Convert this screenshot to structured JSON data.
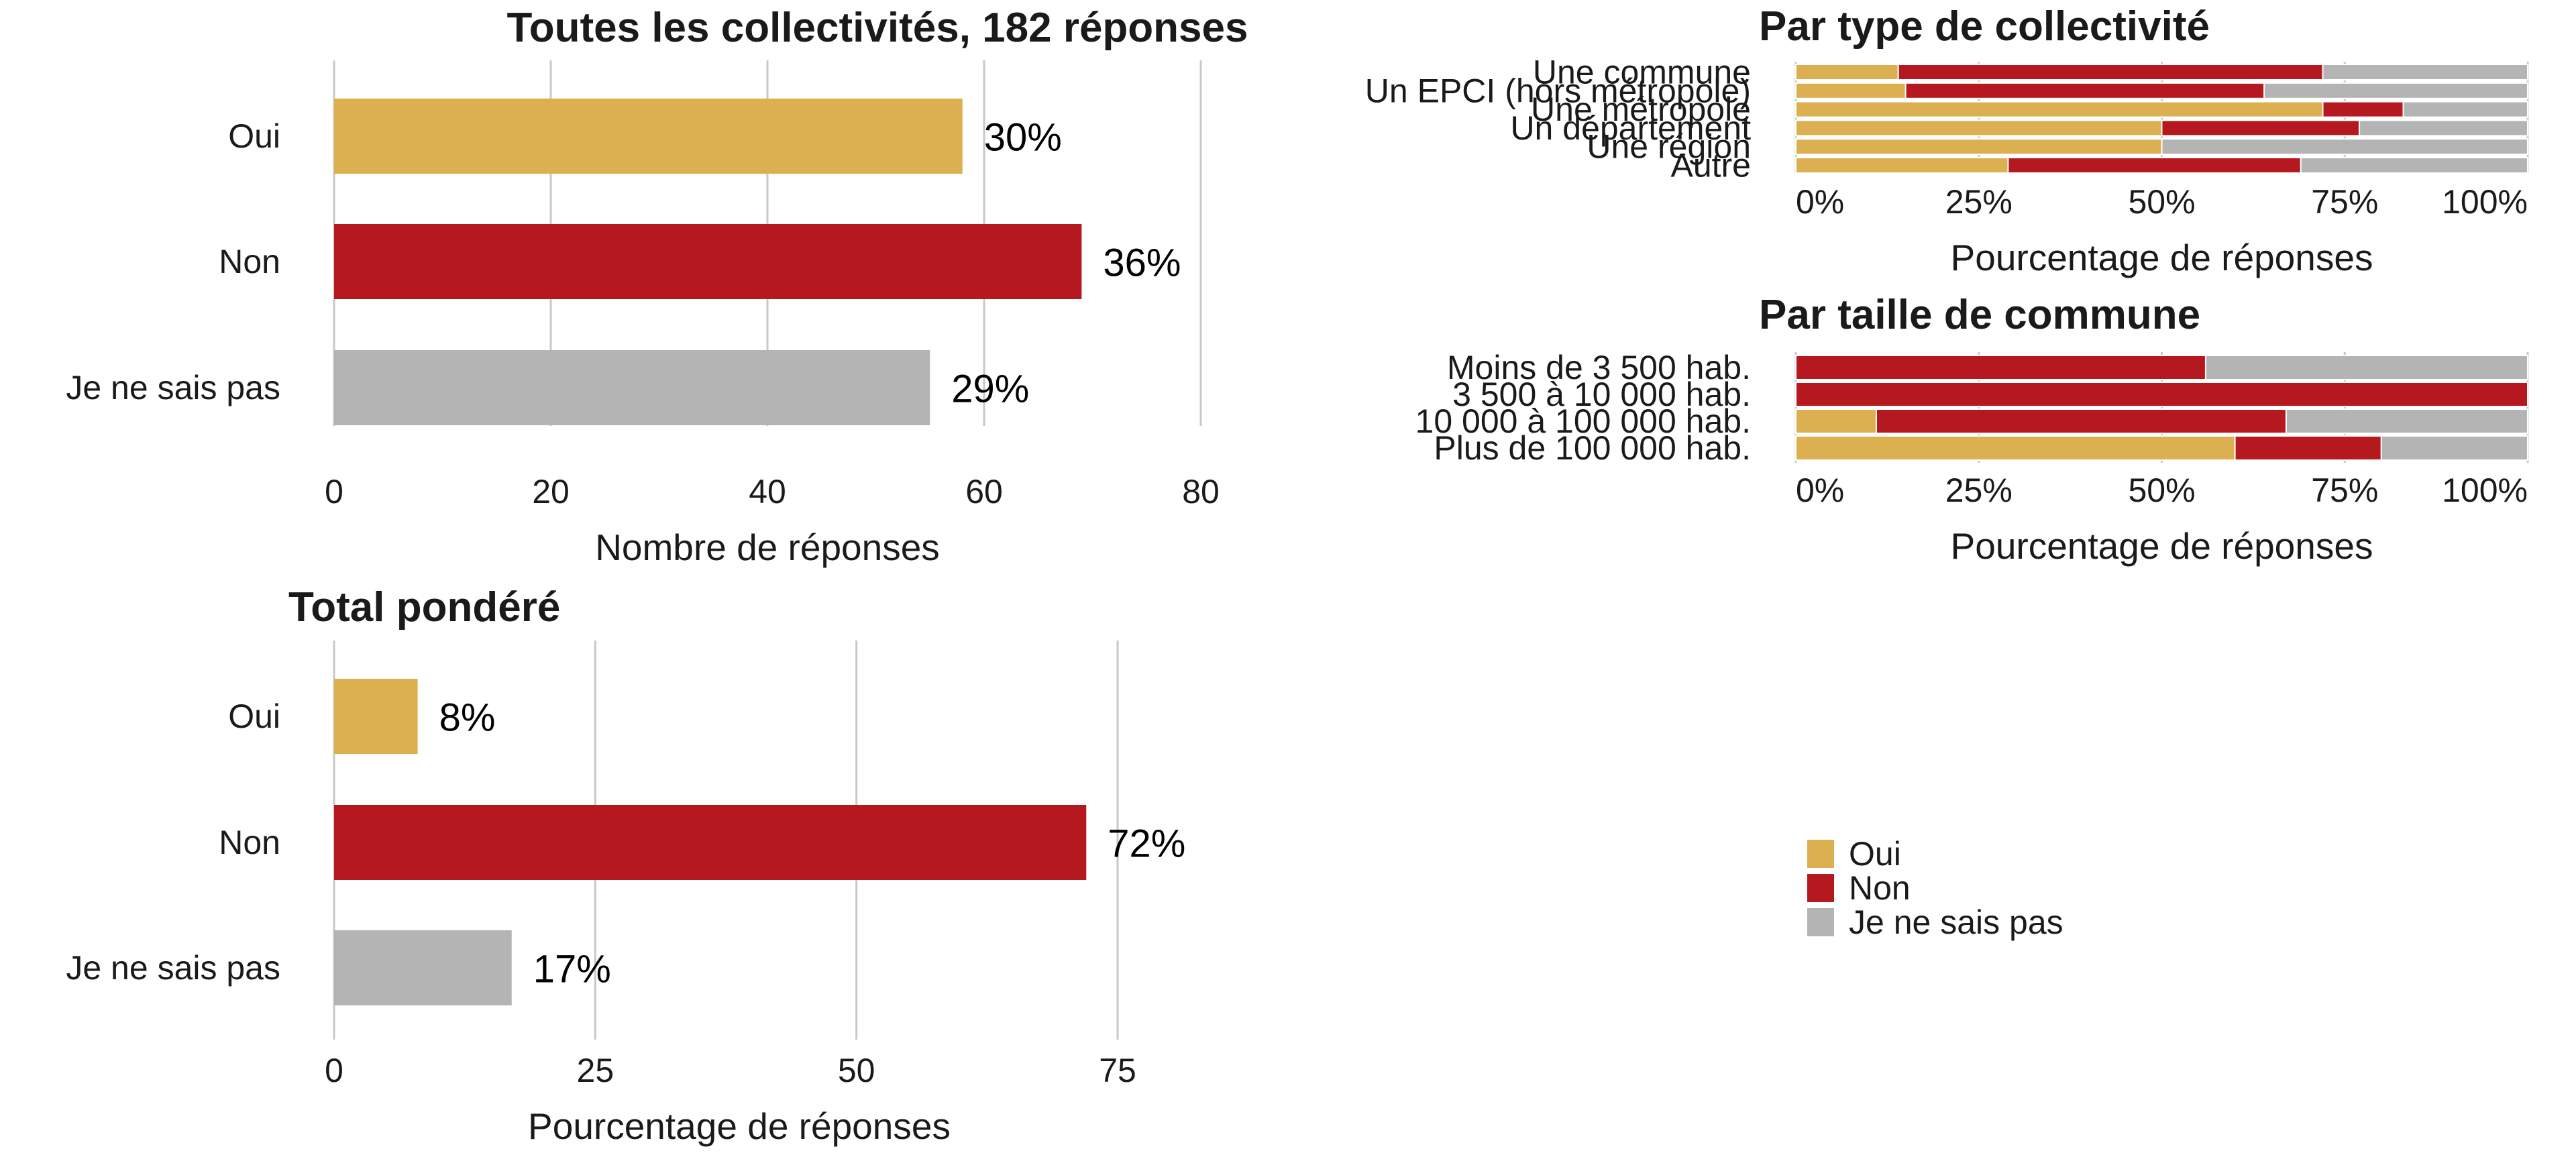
{
  "colors": {
    "Oui": "#dcaf50",
    "Non": "#b5191f",
    "Je ne sais pas": "#b4b4b4"
  },
  "legend": {
    "position": "right",
    "items": [
      "Oui",
      "Non",
      "Je ne sais pas"
    ]
  },
  "chart_data": [
    {
      "id": "total",
      "type": "bar",
      "orientation": "horizontal",
      "title": "Toutes les collectivités, 182 réponses",
      "xlabel": "Nombre de réponses",
      "categories": [
        "Oui",
        "Non",
        "Je ne sais pas"
      ],
      "values": [
        58,
        69,
        55
      ],
      "labels": [
        "30%",
        "36%",
        "29%"
      ],
      "xlim": [
        0,
        80
      ],
      "xticks": [
        0,
        20,
        40,
        60,
        80
      ],
      "grid": true
    },
    {
      "id": "pondere",
      "type": "bar",
      "orientation": "horizontal",
      "title": "Total pondéré",
      "xlabel": "Pourcentage de réponses",
      "categories": [
        "Oui",
        "Non",
        "Je ne sais pas"
      ],
      "values": [
        8,
        72,
        17
      ],
      "labels": [
        "8%",
        "72%",
        "17%"
      ],
      "xlim": [
        0,
        75
      ],
      "xticks": [
        0,
        25,
        50,
        75
      ],
      "grid": true
    },
    {
      "id": "type",
      "type": "bar",
      "stacked": true,
      "orientation": "horizontal",
      "title": "Par type de collectivité",
      "xlabel": "Pourcentage de réponses",
      "categories": [
        "Une commune",
        "Un EPCI (hors métropole)",
        "Une métropole",
        "Un département",
        "Une région",
        "Autre"
      ],
      "series": [
        {
          "name": "Oui",
          "values": [
            14,
            15,
            72,
            50,
            50,
            29
          ]
        },
        {
          "name": "Non",
          "values": [
            58,
            49,
            11,
            27,
            0,
            40
          ]
        },
        {
          "name": "Je ne sais pas",
          "values": [
            28,
            36,
            17,
            23,
            50,
            31
          ]
        }
      ],
      "xlim": [
        0,
        100
      ],
      "xticks": [
        "0%",
        "25%",
        "50%",
        "75%",
        "100%"
      ],
      "grid": true
    },
    {
      "id": "taille",
      "type": "bar",
      "stacked": true,
      "orientation": "horizontal",
      "title": "Par taille de commune",
      "xlabel": "Pourcentage de réponses",
      "categories": [
        "Moins de 3 500 hab.",
        "3 500 à 10 000 hab.",
        "10 000 à 100 000 hab.",
        "Plus de 100 000 hab."
      ],
      "series": [
        {
          "name": "Oui",
          "values": [
            0,
            0,
            11,
            60
          ]
        },
        {
          "name": "Non",
          "values": [
            56,
            100,
            56,
            20
          ]
        },
        {
          "name": "Je ne sais pas",
          "values": [
            44,
            0,
            33,
            20
          ]
        }
      ],
      "xlim": [
        0,
        100
      ],
      "xticks": [
        "0%",
        "25%",
        "50%",
        "75%",
        "100%"
      ],
      "grid": true
    }
  ]
}
